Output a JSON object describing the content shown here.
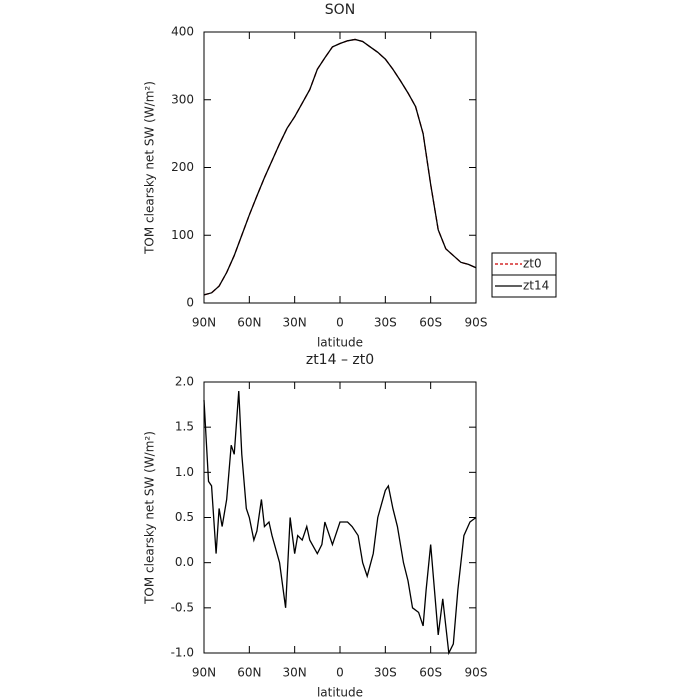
{
  "chart_data": [
    {
      "type": "line",
      "title": "SON",
      "xlabel": "latitude",
      "ylabel": "TOM clearsky net SW (W/m²)",
      "x": [
        90,
        85,
        80,
        75,
        70,
        65,
        60,
        55,
        50,
        45,
        40,
        35,
        30,
        25,
        20,
        15,
        10,
        5,
        0,
        -5,
        -10,
        -15,
        -20,
        -25,
        -30,
        -35,
        -40,
        -45,
        -50,
        -55,
        -60,
        -65,
        -70,
        -75,
        -80,
        -85,
        -90
      ],
      "series": [
        {
          "name": "zt0",
          "color": "#cc0000",
          "dashed": true,
          "values": [
            12,
            15,
            25,
            45,
            70,
            100,
            130,
            158,
            185,
            210,
            235,
            258,
            275,
            295,
            315,
            345,
            362,
            378,
            383,
            387,
            389,
            386,
            378,
            370,
            360,
            345,
            328,
            310,
            290,
            250,
            175,
            108,
            80,
            70,
            60,
            57,
            52
          ]
        },
        {
          "name": "zt14",
          "color": "#000000",
          "dashed": false,
          "values": [
            12,
            15,
            25,
            45,
            70,
            100,
            130,
            158,
            185,
            210,
            235,
            258,
            275,
            295,
            315,
            345,
            362,
            378,
            383,
            387,
            389,
            386,
            378,
            370,
            360,
            345,
            328,
            310,
            290,
            250,
            175,
            108,
            80,
            70,
            60,
            57,
            52
          ]
        }
      ],
      "xlim": [
        90,
        -90
      ],
      "xticks": [
        {
          "value": 90,
          "label": "90N"
        },
        {
          "value": 60,
          "label": "60N"
        },
        {
          "value": 30,
          "label": "30N"
        },
        0,
        {
          "value": -30,
          "label": "30S"
        },
        {
          "value": -60,
          "label": "60S"
        },
        {
          "value": -90,
          "label": "90S"
        }
      ],
      "ylim": [
        0,
        400
      ],
      "yticks": [
        0,
        100,
        200,
        300,
        400
      ],
      "legend": "right"
    },
    {
      "type": "line",
      "title": "zt14 – zt0",
      "xlabel": "latitude",
      "ylabel": "TOM clearsky net SW (W/m²)",
      "x": [
        90,
        87,
        85,
        82,
        80,
        78,
        75,
        72,
        70,
        67,
        65,
        62,
        60,
        57,
        55,
        52,
        50,
        47,
        45,
        40,
        36,
        33,
        30,
        28,
        25,
        22,
        20,
        15,
        12,
        10,
        7,
        5,
        3,
        0,
        -5,
        -8,
        -12,
        -15,
        -18,
        -22,
        -25,
        -30,
        -32,
        -35,
        -38,
        -42,
        -45,
        -48,
        -52,
        -55,
        -57,
        -60,
        -62,
        -65,
        -68,
        -70,
        -72,
        -75,
        -78,
        -82,
        -86,
        -90
      ],
      "series": [
        {
          "color": "#000000",
          "dashed": false,
          "values": [
            1.8,
            0.9,
            0.85,
            0.1,
            0.6,
            0.4,
            0.7,
            1.3,
            1.2,
            1.9,
            1.2,
            0.6,
            0.5,
            0.25,
            0.35,
            0.7,
            0.4,
            0.45,
            0.3,
            0.0,
            -0.5,
            0.5,
            0.1,
            0.3,
            0.25,
            0.4,
            0.25,
            0.1,
            0.2,
            0.45,
            0.3,
            0.2,
            0.3,
            0.45,
            0.45,
            0.4,
            0.3,
            0.0,
            -0.15,
            0.1,
            0.5,
            0.8,
            0.85,
            0.6,
            0.4,
            0.0,
            -0.2,
            -0.5,
            -0.55,
            -0.7,
            -0.3,
            0.2,
            -0.2,
            -0.8,
            -0.4,
            -0.7,
            -1.0,
            -0.9,
            -0.3,
            0.3,
            0.45,
            0.5
          ]
        }
      ],
      "xlim": [
        90,
        -90
      ],
      "xticks": [
        {
          "value": 90,
          "label": "90N"
        },
        {
          "value": 60,
          "label": "60N"
        },
        {
          "value": 30,
          "label": "30N"
        },
        0,
        {
          "value": -30,
          "label": "30S"
        },
        {
          "value": -60,
          "label": "60S"
        },
        {
          "value": -90,
          "label": "90S"
        }
      ],
      "ylim": [
        -1,
        2
      ],
      "yticks": [
        {
          "value": -1,
          "label": "-1.0"
        },
        -0.5,
        {
          "value": 0,
          "label": "0.0"
        },
        0.5,
        {
          "value": 1,
          "label": "1.0"
        },
        1.5,
        {
          "value": 2,
          "label": "2.0"
        }
      ]
    }
  ]
}
